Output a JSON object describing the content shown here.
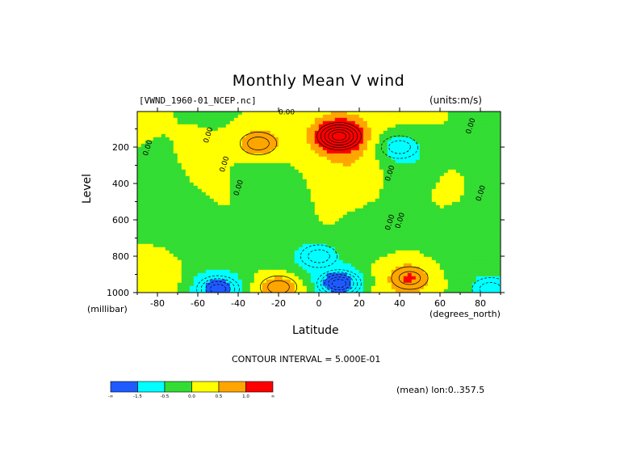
{
  "chart_data": {
    "type": "heatmap",
    "title": "Monthly Mean V wind",
    "dataset_label": "[VWND_1960-01_NCEP.nc]",
    "units_label": "(units:m/s)",
    "xlabel": "Latitude",
    "x_unit": "(degrees_north)",
    "ylabel": "Level",
    "y_unit": "(millibar)",
    "x_ticks": [
      -80,
      -60,
      -40,
      -20,
      0,
      20,
      40,
      60,
      80
    ],
    "y_ticks": [
      200,
      400,
      600,
      800,
      1000
    ],
    "xlim": [
      -90,
      90
    ],
    "ylim": [
      1000,
      10
    ],
    "contour_interval_text": "CONTOUR INTERVAL = 5.000E-01",
    "contour_labels": [
      "0.00",
      "0.00",
      "0.00",
      "0.00",
      "0.00",
      "0.00",
      "0.00",
      "0.00",
      "0.00",
      "0.00"
    ],
    "footer_text": "(mean) lon:0..357.5",
    "colorbar": {
      "colors": [
        "#1e5aff",
        "#00ffff",
        "#33dd33",
        "#ffff00",
        "#ffa500",
        "#ff0000"
      ],
      "labels": [
        "-∞",
        "-1.5",
        "-0.5",
        "0.0",
        "0.5",
        "1.0",
        "∞"
      ]
    },
    "grid": false,
    "features": [
      {
        "lat": 10,
        "level": 140,
        "value": 2.5,
        "note": "strong positive max"
      },
      {
        "lat": -30,
        "level": 180,
        "value": 1.0
      },
      {
        "lat": 40,
        "level": 200,
        "value": -0.8
      },
      {
        "lat": 10,
        "level": 950,
        "value": -2.5,
        "note": "strong negative min"
      },
      {
        "lat": -50,
        "level": 980,
        "value": -2.0
      },
      {
        "lat": 0,
        "level": 800,
        "value": -1.0
      },
      {
        "lat": -20,
        "level": 970,
        "value": 1.0
      },
      {
        "lat": 45,
        "level": 920,
        "value": 1.0
      },
      {
        "lat": 85,
        "level": 980,
        "value": -0.8
      }
    ]
  }
}
